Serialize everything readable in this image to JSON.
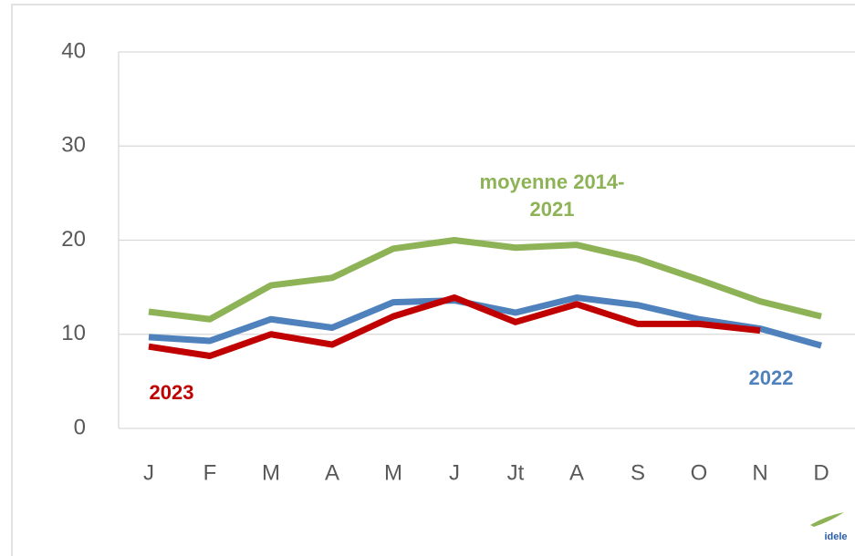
{
  "chart_data": {
    "type": "line",
    "categories": [
      "J",
      "F",
      "M",
      "A",
      "M",
      "J",
      "Jt",
      "A",
      "S",
      "O",
      "N",
      "D"
    ],
    "series": [
      {
        "name": "moyenne 2014-2021",
        "color": "#8db356",
        "values": [
          12.4,
          11.6,
          15.2,
          16.0,
          19.1,
          20.0,
          19.2,
          19.5,
          18.0,
          15.8,
          13.5,
          11.9
        ]
      },
      {
        "name": "2022",
        "color": "#4f81bd",
        "values": [
          9.7,
          9.3,
          11.6,
          10.7,
          13.4,
          13.6,
          12.3,
          13.9,
          13.1,
          11.6,
          10.6,
          8.8
        ]
      },
      {
        "name": "2023",
        "color": "#c00000",
        "values": [
          8.7,
          7.7,
          10.0,
          8.9,
          11.9,
          13.9,
          11.3,
          13.2,
          11.1,
          11.1,
          10.4,
          null
        ]
      }
    ],
    "ylim": [
      0,
      40
    ],
    "yticks": [
      0,
      10,
      20,
      30,
      40
    ],
    "grid": true,
    "logo": "idele"
  }
}
